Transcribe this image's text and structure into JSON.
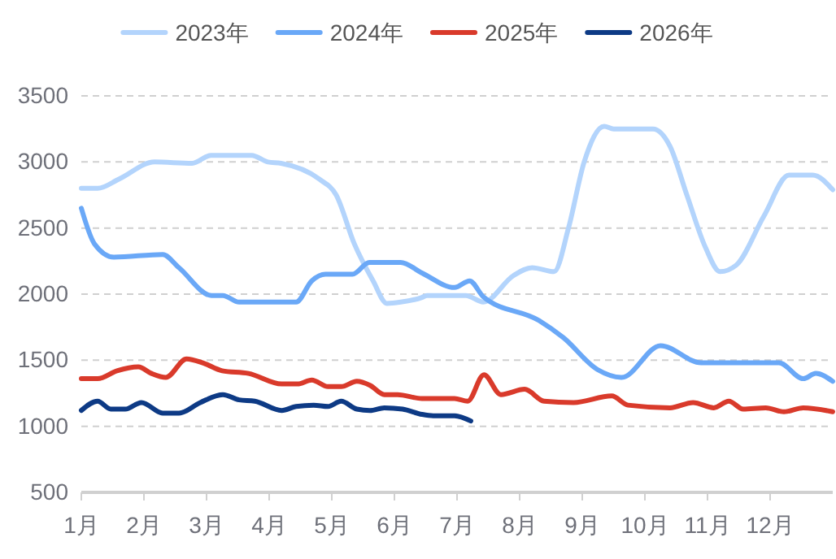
{
  "chart_data": {
    "type": "line",
    "xlim": [
      1,
      13
    ],
    "xticks": [
      {
        "value": 1,
        "label": "1月"
      },
      {
        "value": 2,
        "label": "2月"
      },
      {
        "value": 3,
        "label": "3月"
      },
      {
        "value": 4,
        "label": "4月"
      },
      {
        "value": 5,
        "label": "5月"
      },
      {
        "value": 6,
        "label": "6月"
      },
      {
        "value": 7,
        "label": "7月"
      },
      {
        "value": 8,
        "label": "8月"
      },
      {
        "value": 9,
        "label": "9月"
      },
      {
        "value": 10,
        "label": "10月"
      },
      {
        "value": 11,
        "label": "11月"
      },
      {
        "value": 12,
        "label": "12月"
      }
    ],
    "ylim": [
      500,
      3500
    ],
    "yticks": [
      500,
      1000,
      1500,
      2000,
      2500,
      3000,
      3500
    ],
    "grid": "y",
    "legend": "top",
    "marker": "none",
    "line_style": "solid",
    "series": [
      {
        "name": "2023年",
        "color": "#b3d4fc",
        "x": [
          1,
          1.26,
          1.6,
          2.17,
          2.77,
          3.07,
          3.72,
          3.98,
          4.19,
          4.8,
          5.07,
          5.36,
          5.66,
          5.88,
          6.1,
          6.44,
          6.52,
          7.14,
          7.42,
          7.9,
          8.2,
          8.55,
          8.78,
          9.03,
          9.35,
          9.5,
          10.13,
          10.4,
          10.67,
          10.97,
          11.2,
          11.46,
          11.9,
          12.3,
          12.47,
          12.68,
          13
        ],
        "values": [
          2800,
          2800,
          2870,
          3000,
          2990,
          3050,
          3050,
          3000,
          2990,
          2870,
          2750,
          2380,
          2100,
          1930,
          1940,
          1975,
          1990,
          1990,
          1940,
          2140,
          2200,
          2170,
          2500,
          3000,
          3270,
          3250,
          3250,
          3120,
          2750,
          2350,
          2170,
          2220,
          2590,
          2900,
          2900,
          2900,
          2790
        ]
      },
      {
        "name": "2024年",
        "color": "#6aa8f7",
        "x": [
          1,
          1.21,
          1.52,
          2.3,
          2.56,
          3.08,
          3.26,
          3.52,
          4.2,
          4.43,
          4.68,
          4.9,
          5.33,
          5.6,
          6.1,
          6.44,
          6.96,
          7.2,
          7.42,
          8.31,
          8.7,
          9.24,
          9.63,
          10.25,
          10.9,
          12.14,
          12.53,
          12.73,
          13
        ],
        "values": [
          2650,
          2380,
          2280,
          2300,
          2200,
          1990,
          1990,
          1940,
          1940,
          1940,
          2100,
          2150,
          2150,
          2240,
          2240,
          2160,
          2050,
          2100,
          1980,
          1800,
          1670,
          1430,
          1370,
          1610,
          1480,
          1480,
          1360,
          1400,
          1340
        ]
      },
      {
        "name": "2025年",
        "color": "#d93a2b",
        "x": [
          1,
          1.26,
          1.57,
          1.91,
          2.12,
          2.35,
          2.68,
          2.94,
          3.25,
          3.67,
          4.2,
          4.45,
          4.68,
          4.94,
          5.15,
          5.4,
          5.61,
          5.84,
          6.05,
          6.44,
          6.96,
          7.17,
          7.43,
          7.7,
          8.08,
          8.39,
          8.86,
          9.47,
          9.73,
          10.4,
          10.77,
          11.1,
          11.34,
          11.57,
          11.93,
          12.22,
          12.53,
          13
        ],
        "values": [
          1360,
          1360,
          1420,
          1450,
          1400,
          1370,
          1510,
          1480,
          1420,
          1400,
          1320,
          1320,
          1350,
          1300,
          1300,
          1340,
          1310,
          1240,
          1240,
          1210,
          1210,
          1190,
          1390,
          1240,
          1280,
          1190,
          1180,
          1230,
          1160,
          1140,
          1180,
          1140,
          1190,
          1130,
          1140,
          1110,
          1140,
          1110
        ]
      },
      {
        "name": "2026年",
        "color": "#0d3a85",
        "x": [
          1,
          1.26,
          1.47,
          1.7,
          1.96,
          2.3,
          2.56,
          2.9,
          3.26,
          3.52,
          3.77,
          4.2,
          4.43,
          4.71,
          4.94,
          5.15,
          5.4,
          5.61,
          5.84,
          6.13,
          6.44,
          6.62,
          6.96,
          7.22
        ],
        "values": [
          1120,
          1190,
          1130,
          1130,
          1180,
          1100,
          1100,
          1180,
          1240,
          1200,
          1190,
          1120,
          1150,
          1160,
          1150,
          1190,
          1130,
          1120,
          1140,
          1130,
          1090,
          1080,
          1080,
          1040
        ]
      }
    ]
  }
}
